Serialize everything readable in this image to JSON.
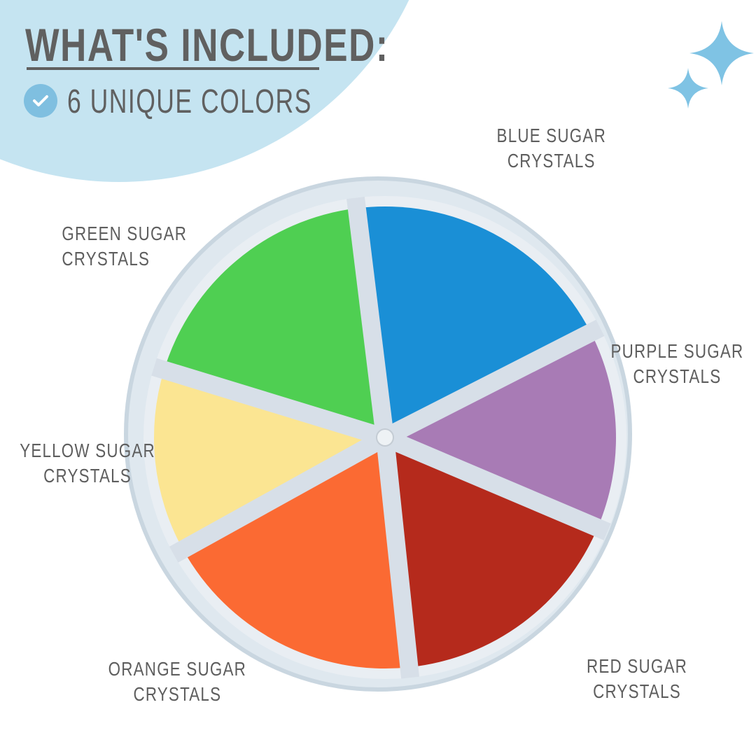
{
  "header": {
    "title": "WHAT'S INCLUDED:",
    "features": [
      {
        "icon": "check-circle-icon",
        "text": "6 UNIQUE COLORS"
      }
    ]
  },
  "accent_color": "#7fbfe0",
  "blob_color": "#c5e4f1",
  "decorations": [
    "sparkle-icon",
    "sparkle-icon"
  ],
  "compartments": [
    {
      "name": "blue",
      "line1": "BLUE SUGAR",
      "line2": "CRYSTALS",
      "color": "#1a8fd6"
    },
    {
      "name": "purple",
      "line1": "PURPLE SUGAR",
      "line2": "CRYSTALS",
      "color": "#a87bb5"
    },
    {
      "name": "red",
      "line1": "RED SUGAR",
      "line2": "CRYSTALS",
      "color": "#b52a1c"
    },
    {
      "name": "orange",
      "line1": "ORANGE SUGAR",
      "line2": "CRYSTALS",
      "color": "#fb6a33"
    },
    {
      "name": "yellow",
      "line1": "YELLOW SUGAR",
      "line2": "CRYSTALS",
      "color": "#fbe592"
    },
    {
      "name": "green",
      "line1": "GREEN SUGAR",
      "line2": "CRYSTALS",
      "color": "#4fcf52"
    }
  ]
}
